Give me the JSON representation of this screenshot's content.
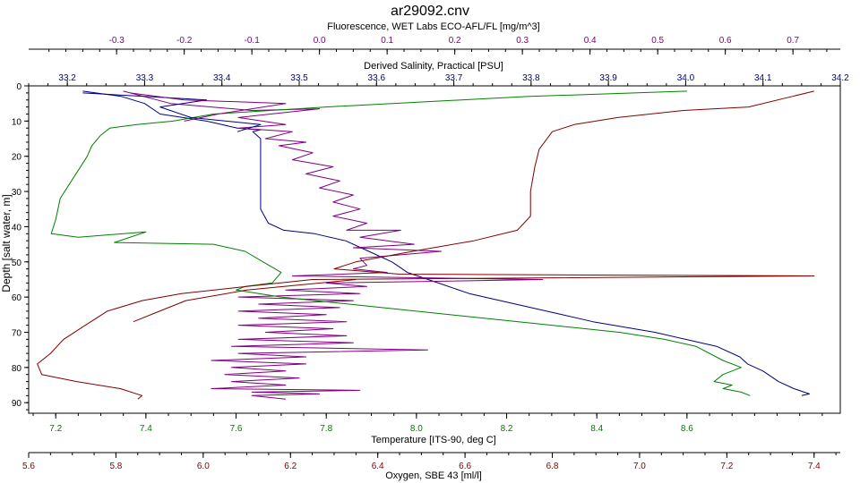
{
  "chart_data": {
    "type": "line",
    "title": "ar29092.cnv",
    "ylabel": "Depth [salt water, m]",
    "ylim": [
      0,
      93
    ],
    "y_ticks": [
      "0",
      "10",
      "20",
      "30",
      "40",
      "50",
      "60",
      "70",
      "80",
      "90"
    ],
    "y_reversed": true,
    "grid": false,
    "axes": {
      "fluorescence": {
        "label": "Fluorescence, WET Labs ECO-AFL/FL [mg/m^3]",
        "range": [
          -0.43,
          0.77
        ],
        "ticks": [
          "-0.3",
          "-0.2",
          "-0.1",
          "0.0",
          "0.1",
          "0.2",
          "0.3",
          "0.4",
          "0.5",
          "0.6",
          "0.7"
        ],
        "color": "#800080"
      },
      "salinity": {
        "label": "Derived Salinity, Practical [PSU]",
        "range": [
          33.15,
          34.2
        ],
        "ticks": [
          "33.2",
          "33.3",
          "33.4",
          "33.5",
          "33.6",
          "33.7",
          "33.8",
          "33.9",
          "34.0",
          "34.1",
          "34.2"
        ],
        "color": "#000080"
      },
      "temperature": {
        "label": "Temperature [ITS-90, deg C]",
        "range": [
          7.14,
          8.94
        ],
        "ticks": [
          "7.2",
          "7.4",
          "7.6",
          "7.8",
          "8.0",
          "8.2",
          "8.4",
          "8.6"
        ],
        "color": "#008000"
      },
      "oxygen": {
        "label": "Oxygen, SBE 43 [ml/l]",
        "range": [
          5.6,
          7.46
        ],
        "ticks": [
          "5.6",
          "5.8",
          "6.0",
          "6.2",
          "6.4",
          "6.6",
          "6.8",
          "7.0",
          "7.2",
          "7.4"
        ],
        "color": "#800000"
      }
    },
    "series": [
      {
        "axis": "salinity",
        "color": "#000080",
        "points": [
          [
            33.22,
            1.5
          ],
          [
            33.27,
            3
          ],
          [
            33.3,
            5
          ],
          [
            33.32,
            8
          ],
          [
            33.38,
            10
          ],
          [
            33.4,
            11
          ],
          [
            33.42,
            12
          ],
          [
            33.45,
            12.5
          ],
          [
            33.44,
            13
          ],
          [
            33.45,
            15
          ],
          [
            33.45,
            25
          ],
          [
            33.45,
            35
          ],
          [
            33.46,
            39
          ],
          [
            33.48,
            41
          ],
          [
            33.52,
            42
          ],
          [
            33.56,
            44
          ],
          [
            33.59,
            47
          ],
          [
            33.62,
            50
          ],
          [
            33.64,
            53
          ],
          [
            33.68,
            56
          ],
          [
            33.72,
            59
          ],
          [
            33.78,
            62
          ],
          [
            33.84,
            65
          ],
          [
            33.88,
            67
          ],
          [
            33.96,
            70
          ],
          [
            34.0,
            72
          ],
          [
            34.04,
            74
          ],
          [
            34.07,
            77
          ],
          [
            34.08,
            79
          ],
          [
            34.1,
            81
          ],
          [
            34.12,
            84
          ],
          [
            34.14,
            86
          ],
          [
            34.16,
            87.5
          ],
          [
            34.15,
            88
          ]
        ]
      },
      {
        "axis": "fluorescence",
        "color": "#800080",
        "points": [
          [
            -0.29,
            1.5
          ],
          [
            -0.26,
            3
          ],
          [
            -0.22,
            5
          ],
          [
            -0.1,
            7
          ],
          [
            0.0,
            6.5
          ],
          [
            -0.12,
            9
          ],
          [
            -0.05,
            11
          ],
          [
            -0.12,
            12
          ],
          [
            -0.04,
            13
          ],
          [
            -0.08,
            15
          ],
          [
            -0.02,
            16
          ],
          [
            -0.06,
            17
          ],
          [
            -0.01,
            19
          ],
          [
            -0.04,
            21
          ],
          [
            0.02,
            23
          ],
          [
            -0.02,
            25
          ],
          [
            0.03,
            27
          ],
          [
            0.0,
            29
          ],
          [
            0.05,
            31
          ],
          [
            0.02,
            33
          ],
          [
            0.06,
            35
          ],
          [
            0.02,
            37
          ],
          [
            0.07,
            39
          ],
          [
            0.04,
            41
          ],
          [
            0.12,
            41
          ],
          [
            0.06,
            43
          ],
          [
            0.14,
            45
          ],
          [
            0.05,
            46
          ],
          [
            0.18,
            47
          ],
          [
            0.06,
            49
          ],
          [
            0.07,
            51
          ],
          [
            0.05,
            52
          ],
          [
            0.1,
            53
          ],
          [
            -0.04,
            54
          ],
          [
            0.33,
            55
          ],
          [
            0.01,
            56
          ],
          [
            0.07,
            57
          ],
          [
            -0.05,
            58
          ],
          [
            0.06,
            59
          ],
          [
            -0.12,
            60
          ],
          [
            0.05,
            61
          ],
          [
            -0.09,
            62
          ],
          [
            0.03,
            63
          ],
          [
            -0.12,
            64
          ],
          [
            0.01,
            65
          ],
          [
            -0.09,
            66
          ],
          [
            0.04,
            67
          ],
          [
            -0.12,
            68
          ],
          [
            0.02,
            69
          ],
          [
            -0.08,
            70
          ],
          [
            0.04,
            71
          ],
          [
            -0.12,
            72
          ],
          [
            0.05,
            73
          ],
          [
            -0.13,
            74
          ],
          [
            0.16,
            75
          ],
          [
            -0.12,
            76
          ],
          [
            -0.02,
            77
          ],
          [
            -0.16,
            78
          ],
          [
            -0.02,
            79
          ],
          [
            -0.13,
            80
          ],
          [
            -0.05,
            81
          ],
          [
            -0.14,
            82
          ],
          [
            -0.03,
            83
          ],
          [
            -0.13,
            84
          ],
          [
            -0.05,
            85
          ],
          [
            -0.16,
            86
          ],
          [
            0.06,
            86.5
          ],
          [
            -0.1,
            87
          ],
          [
            0.0,
            87.5
          ],
          [
            -0.1,
            88
          ],
          [
            -0.05,
            89
          ]
        ]
      },
      {
        "axis": "temperature",
        "color": "#008000",
        "points": [
          [
            8.6,
            1.5
          ],
          [
            8.25,
            3
          ],
          [
            7.8,
            6
          ],
          [
            7.55,
            8
          ],
          [
            7.46,
            10
          ],
          [
            7.38,
            11
          ],
          [
            7.32,
            12
          ],
          [
            7.3,
            14
          ],
          [
            7.28,
            17
          ],
          [
            7.27,
            20
          ],
          [
            7.24,
            26
          ],
          [
            7.21,
            32
          ],
          [
            7.2,
            38
          ],
          [
            7.19,
            42
          ],
          [
            7.25,
            43
          ],
          [
            7.4,
            41.5
          ],
          [
            7.33,
            44.5
          ],
          [
            7.55,
            45
          ],
          [
            7.62,
            47
          ],
          [
            7.66,
            50
          ],
          [
            7.7,
            53
          ],
          [
            7.68,
            56
          ],
          [
            7.62,
            57
          ],
          [
            7.6,
            58
          ],
          [
            7.7,
            60
          ],
          [
            7.85,
            62
          ],
          [
            8.0,
            64
          ],
          [
            8.15,
            66
          ],
          [
            8.3,
            68
          ],
          [
            8.45,
            70
          ],
          [
            8.55,
            72
          ],
          [
            8.62,
            74
          ],
          [
            8.68,
            78
          ],
          [
            8.72,
            80
          ],
          [
            8.68,
            82
          ],
          [
            8.66,
            84
          ],
          [
            8.7,
            85
          ],
          [
            8.68,
            86
          ],
          [
            8.72,
            87
          ],
          [
            8.74,
            88
          ]
        ]
      },
      {
        "axis": "oxygen",
        "color": "#800000",
        "points": [
          [
            7.4,
            1.5
          ],
          [
            7.35,
            3
          ],
          [
            7.25,
            6
          ],
          [
            7.1,
            7
          ],
          [
            6.95,
            9
          ],
          [
            6.85,
            11
          ],
          [
            6.8,
            13
          ],
          [
            6.77,
            18
          ],
          [
            6.76,
            23
          ],
          [
            6.75,
            30
          ],
          [
            6.75,
            37
          ],
          [
            6.72,
            41
          ],
          [
            6.62,
            44
          ],
          [
            6.48,
            47
          ],
          [
            6.35,
            50
          ],
          [
            6.3,
            52
          ],
          [
            6.45,
            53.5
          ],
          [
            7.4,
            54
          ],
          [
            6.25,
            55
          ],
          [
            6.1,
            57
          ],
          [
            5.95,
            59
          ],
          [
            5.86,
            61
          ],
          [
            5.78,
            64
          ],
          [
            5.73,
            68
          ],
          [
            5.68,
            72
          ],
          [
            5.65,
            76
          ],
          [
            5.62,
            79
          ],
          [
            5.63,
            82
          ],
          [
            5.71,
            84
          ],
          [
            5.81,
            86
          ],
          [
            5.86,
            88
          ],
          [
            5.85,
            89
          ]
        ]
      },
      {
        "axis": "salinity",
        "color": "#000080",
        "points": [
          [
            33.22,
            2
          ],
          [
            33.3,
            3
          ],
          [
            33.38,
            4
          ],
          [
            33.32,
            6
          ],
          [
            33.36,
            9
          ],
          [
            33.45,
            11
          ],
          [
            33.42,
            13
          ]
        ]
      },
      {
        "axis": "fluorescence",
        "color": "#800080",
        "points": [
          [
            -0.28,
            2
          ],
          [
            -0.2,
            4
          ],
          [
            -0.05,
            5
          ],
          [
            -0.15,
            8
          ],
          [
            -0.2,
            10
          ]
        ]
      },
      {
        "axis": "oxygen",
        "color": "#800000",
        "points": [
          [
            6.35,
            55
          ],
          [
            6.1,
            58
          ],
          [
            5.96,
            61
          ],
          [
            5.9,
            64
          ],
          [
            5.84,
            67
          ]
        ]
      }
    ]
  }
}
